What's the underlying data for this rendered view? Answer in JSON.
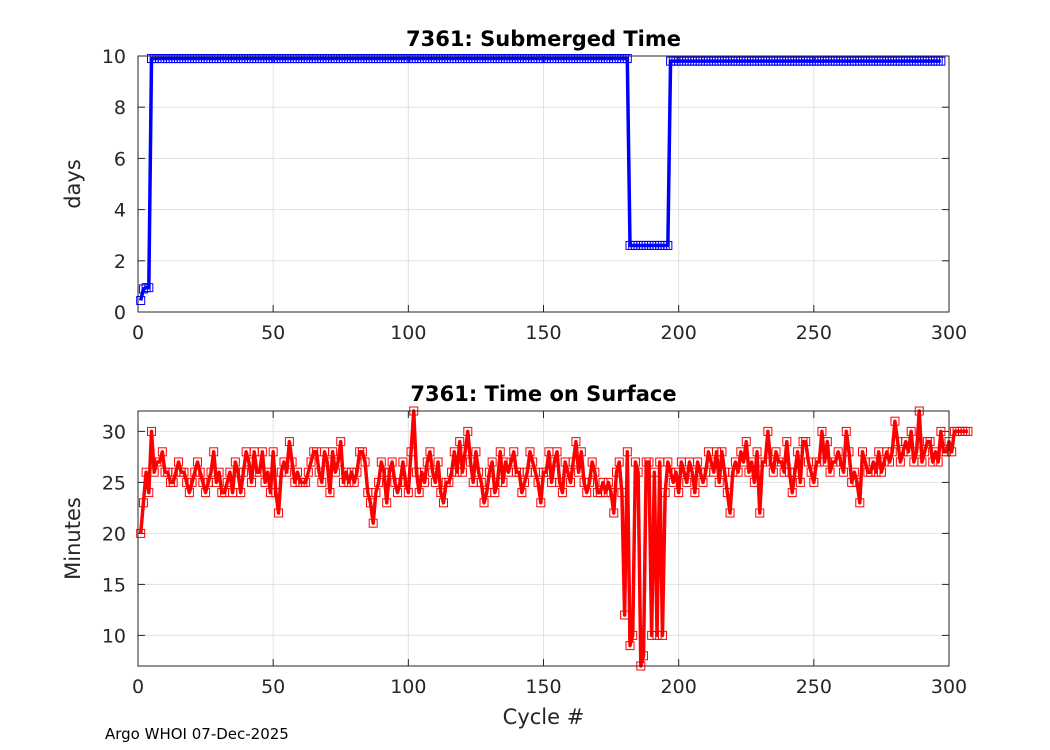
{
  "footer": "Argo WHOI 07-Dec-2025",
  "chart_data": [
    {
      "type": "line",
      "title": "7361: Submerged Time",
      "xlabel": "",
      "ylabel": "days",
      "xlim": [
        0,
        300
      ],
      "ylim": [
        0,
        10
      ],
      "xticks": [
        0,
        50,
        100,
        150,
        200,
        250,
        300
      ],
      "yticks": [
        0,
        2,
        4,
        6,
        8,
        10
      ],
      "grid": true,
      "marker": "square",
      "color": "#0000ff",
      "series": [
        {
          "segments": [
            {
              "x_start": 1,
              "x_end": 1,
              "y": 0.45
            },
            {
              "x_start": 2,
              "x_end": 2,
              "y": 0.9
            },
            {
              "x_start": 3,
              "x_end": 4,
              "y": 0.95
            },
            {
              "x_start": 5,
              "x_end": 181,
              "y": 9.9
            },
            {
              "x_start": 182,
              "x_end": 196,
              "y": 2.6
            },
            {
              "x_start": 197,
              "x_end": 297,
              "y": 9.8
            }
          ]
        }
      ]
    },
    {
      "type": "line",
      "title": "7361: Time on Surface",
      "xlabel": "Cycle #",
      "ylabel": "Minutes",
      "xlim": [
        0,
        300
      ],
      "ylim": [
        7,
        32
      ],
      "xticks": [
        0,
        50,
        100,
        150,
        200,
        250,
        300
      ],
      "yticks": [
        10,
        15,
        20,
        25,
        30
      ],
      "grid": true,
      "marker": "square",
      "color": "#ff0000",
      "series": [
        {
          "y": [
            20,
            23,
            26,
            24,
            30,
            26,
            27,
            27,
            28,
            26,
            26,
            25,
            25,
            26,
            27,
            26,
            26,
            25,
            24,
            25,
            26,
            27,
            26,
            25,
            24,
            25,
            26,
            28,
            25,
            26,
            24,
            24,
            25,
            26,
            24,
            27,
            26,
            24,
            26,
            28,
            27,
            25,
            28,
            26,
            26,
            28,
            25,
            26,
            24,
            28,
            24,
            22,
            26,
            27,
            26,
            29,
            27,
            25,
            26,
            25,
            25,
            25,
            26,
            27,
            28,
            28,
            26,
            25,
            28,
            27,
            24,
            28,
            26,
            27,
            29,
            25,
            26,
            25,
            26,
            25,
            26,
            28,
            28,
            27,
            24,
            23,
            21,
            24,
            25,
            27,
            26,
            23,
            26,
            27,
            25,
            24,
            25,
            27,
            25,
            24,
            28,
            32,
            26,
            24,
            26,
            25,
            27,
            28,
            26,
            25,
            27,
            24,
            23,
            25,
            25,
            26,
            28,
            26,
            29,
            26,
            28,
            30,
            27,
            25,
            28,
            26,
            25,
            23,
            24,
            26,
            27,
            24,
            25,
            28,
            25,
            27,
            26,
            27,
            28,
            26,
            26,
            24,
            25,
            26,
            28,
            27,
            26,
            25,
            23,
            26,
            26,
            28,
            25,
            27,
            28,
            25,
            24,
            27,
            26,
            25,
            27,
            29,
            26,
            28,
            25,
            24,
            25,
            27,
            26,
            24,
            24,
            25,
            24,
            25,
            24,
            22,
            26,
            27,
            24,
            12,
            28,
            9,
            10,
            27,
            26,
            7,
            8,
            27,
            27,
            10,
            26,
            10,
            27,
            10,
            24,
            27,
            26,
            25,
            26,
            24,
            27,
            26,
            25,
            27,
            26,
            24,
            27,
            26,
            25,
            26,
            28,
            27,
            26,
            28,
            25,
            28,
            26,
            24,
            22,
            26,
            27,
            26,
            28,
            27,
            29,
            26,
            27,
            25,
            28,
            22,
            27,
            27,
            30,
            27,
            26,
            28,
            27,
            27,
            26,
            29,
            26,
            24,
            26,
            28,
            25,
            29,
            29,
            27,
            26,
            25,
            27,
            27,
            30,
            27,
            29,
            26,
            27,
            27,
            28,
            27,
            26,
            30,
            28,
            25,
            26,
            25,
            23,
            28,
            27,
            26,
            26,
            27,
            26,
            28,
            26,
            27,
            28,
            27,
            28,
            31,
            29,
            27,
            28,
            29,
            28,
            30,
            27,
            28,
            32,
            27,
            28,
            29,
            29,
            27,
            28,
            27,
            30,
            28,
            28,
            29,
            28,
            30,
            30,
            30,
            30,
            30,
            30
          ]
        }
      ]
    }
  ]
}
